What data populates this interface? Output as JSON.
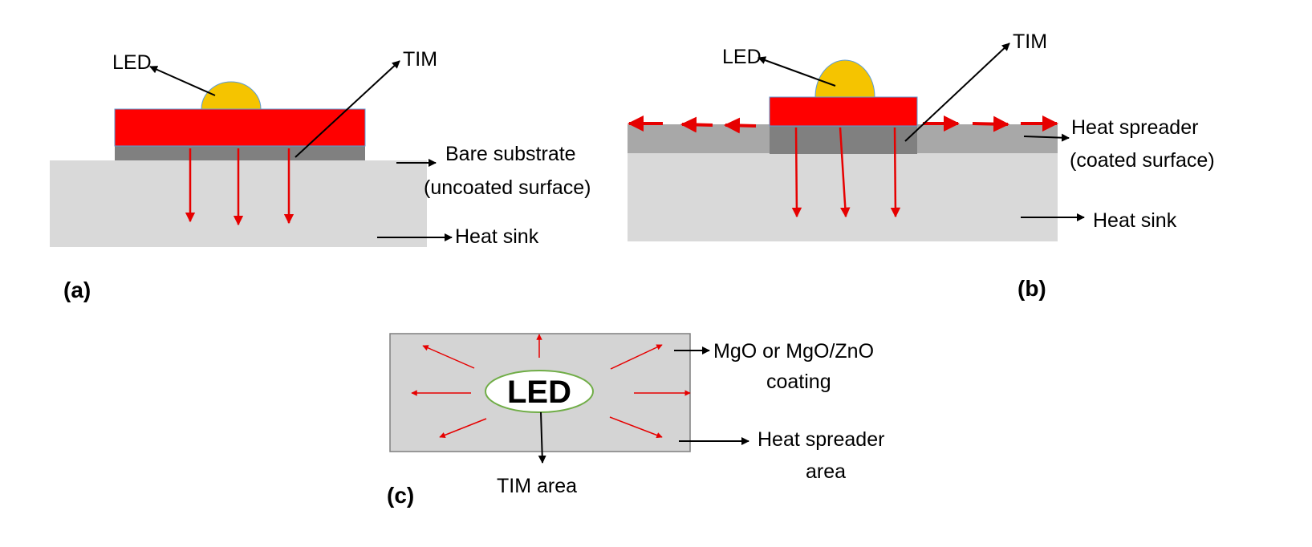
{
  "panel_a": {
    "tag": "(a)",
    "led_label": "LED",
    "tim_label": "TIM",
    "substrate_label_line1": "Bare substrate",
    "substrate_label_line2": "(uncoated surface)",
    "heat_sink_label": "Heat sink"
  },
  "panel_b": {
    "tag": "(b)",
    "led_label": "LED",
    "tim_label": "TIM",
    "spreader_label_line1": "Heat spreader",
    "spreader_label_line2": "(coated surface)",
    "heat_sink_label": "Heat sink"
  },
  "panel_c": {
    "tag": "(c)",
    "led_label": "LED",
    "coating_label_line1": "MgO or MgO/ZnO",
    "coating_label_line2": "coating",
    "spreader_label_line1": "Heat spreader",
    "spreader_label_line2": "area",
    "tim_area_label": "TIM area"
  },
  "colors": {
    "led_dome": "#f5c400",
    "led_board": "#ff0000",
    "tim": "#808080",
    "spreader": "#a8a8a8",
    "heat_sink": "#d9d9d9",
    "heat_arrow": "#e60000",
    "callout": "#000000"
  }
}
